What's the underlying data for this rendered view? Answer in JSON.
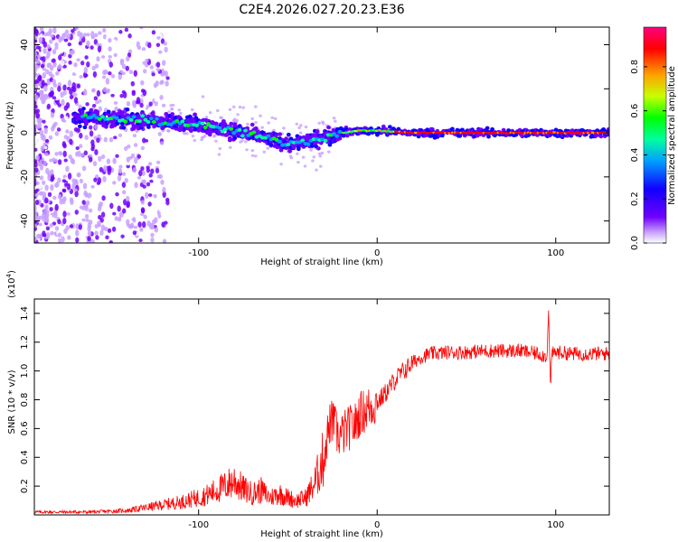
{
  "title": "C2E4.2026.027.20.23.E36",
  "chart_data": [
    {
      "type": "heatmap",
      "name": "spectrogram",
      "xlabel": "Height of straight line (km)",
      "ylabel": "Frequency (Hz)",
      "xlim": [
        -192,
        130
      ],
      "ylim": [
        -50,
        48
      ],
      "xticks": [
        -100,
        0,
        100
      ],
      "yticks": [
        -40,
        -20,
        0,
        20,
        40
      ],
      "colorbar": {
        "label": "Normalized spectral amplitude",
        "range": [
          0,
          0.98
        ],
        "ticks": [
          0.0,
          0.2,
          0.4,
          0.6,
          0.8
        ],
        "colormap": [
          "#ffffff",
          "#c8a0ff",
          "#7000ff",
          "#1000ff",
          "#00a0ff",
          "#00ffa0",
          "#00ff00",
          "#c8ff00",
          "#ffa000",
          "#ff0000",
          "#ff0080"
        ]
      },
      "ridge": {
        "x": [
          -160,
          -140,
          -120,
          -100,
          -90,
          -80,
          -70,
          -60,
          -50,
          -40,
          -30,
          -20,
          -10,
          0,
          20,
          50,
          100,
          130
        ],
        "y": [
          7,
          6,
          5,
          4,
          2,
          1,
          -1,
          -3,
          -5,
          -4,
          -2,
          0,
          1,
          1,
          0,
          0,
          0,
          0
        ]
      }
    },
    {
      "type": "line",
      "name": "snr",
      "xlabel": "Height of straight line (km)",
      "ylabel": "SNR (10 * v/v)",
      "scale_label": "(x10",
      "scale_exp": "4",
      "scale_close": ")",
      "xlim": [
        -192,
        130
      ],
      "ylim": [
        0,
        1.5
      ],
      "xticks": [
        -100,
        0,
        100
      ],
      "yticks": [
        0.2,
        0.4,
        0.6,
        0.8,
        1.0,
        1.2,
        1.4
      ],
      "series": [
        {
          "name": "SNR",
          "color": "#ff0000",
          "x": [
            -192,
            -160,
            -140,
            -130,
            -120,
            -110,
            -100,
            -95,
            -90,
            -85,
            -80,
            -75,
            -70,
            -65,
            -60,
            -55,
            -50,
            -45,
            -40,
            -35,
            -30,
            -28,
            -26,
            -24,
            -22,
            -20,
            -18,
            -16,
            -14,
            -12,
            -10,
            -5,
            0,
            5,
            10,
            15,
            20,
            25,
            30,
            40,
            50,
            60,
            70,
            80,
            90,
            95,
            96,
            97,
            98,
            100,
            110,
            120,
            130
          ],
          "y": [
            0.02,
            0.02,
            0.03,
            0.05,
            0.07,
            0.09,
            0.12,
            0.14,
            0.17,
            0.2,
            0.24,
            0.18,
            0.15,
            0.17,
            0.12,
            0.15,
            0.12,
            0.1,
            0.12,
            0.22,
            0.4,
            0.55,
            0.65,
            0.62,
            0.55,
            0.55,
            0.58,
            0.6,
            0.62,
            0.63,
            0.7,
            0.74,
            0.78,
            0.85,
            0.94,
            1.0,
            1.06,
            1.1,
            1.12,
            1.13,
            1.13,
            1.14,
            1.14,
            1.14,
            1.12,
            1.1,
            1.42,
            0.9,
            1.12,
            1.13,
            1.12,
            1.12,
            1.12
          ]
        }
      ]
    }
  ]
}
